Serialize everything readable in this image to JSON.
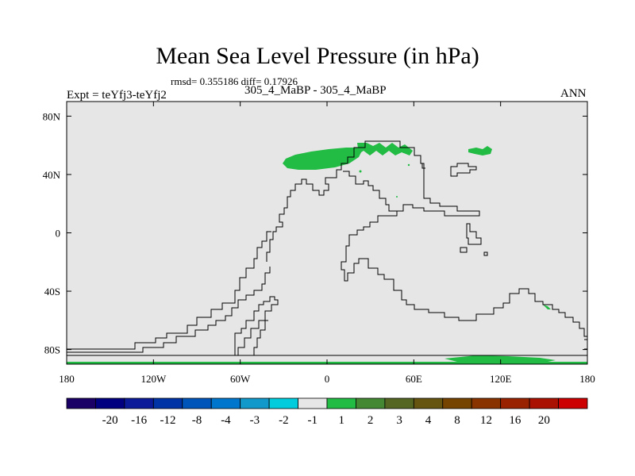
{
  "title": "Mean Sea Level Pressure (in hPa)",
  "stats": "rmsd= 0.355186 diff= 0.17926",
  "experiment": "Expt = teYfj3-teYfj2",
  "case": "305_4_MaBP - 305_4_MaBP",
  "season": "ANN",
  "map": {
    "lat_range": [
      -90,
      90
    ],
    "lon_range": [
      -180,
      180
    ],
    "y_ticks": [
      {
        "value": 80,
        "label": "80N"
      },
      {
        "value": 40,
        "label": "40N"
      },
      {
        "value": 0,
        "label": "0"
      },
      {
        "value": -40,
        "label": "40S"
      },
      {
        "value": -80,
        "label": "80S"
      }
    ],
    "x_ticks": [
      {
        "value": -180,
        "label": "180"
      },
      {
        "value": -120,
        "label": "120W"
      },
      {
        "value": -60,
        "label": "60W"
      },
      {
        "value": 0,
        "label": "0"
      },
      {
        "value": 60,
        "label": "60E"
      },
      {
        "value": 120,
        "label": "120E"
      },
      {
        "value": 180,
        "label": "180"
      }
    ],
    "background_color": "#e6e6e6",
    "anomaly_color": "#22bb44"
  },
  "colorbar": {
    "colors": [
      "#1a0066",
      "#000080",
      "#0a1a99",
      "#0033a6",
      "#0055bb",
      "#0077cc",
      "#1199cc",
      "#00ccdd",
      "#e6e6e6",
      "#22bb44",
      "#448833",
      "#556622",
      "#665511",
      "#774400",
      "#883300",
      "#992200",
      "#aa1100",
      "#cc0000"
    ],
    "labels": [
      "-20",
      "-16",
      "-12",
      "-8",
      "-4",
      "-3",
      "-2",
      "-1",
      "1",
      "2",
      "3",
      "4",
      "8",
      "12",
      "16",
      "20"
    ]
  }
}
